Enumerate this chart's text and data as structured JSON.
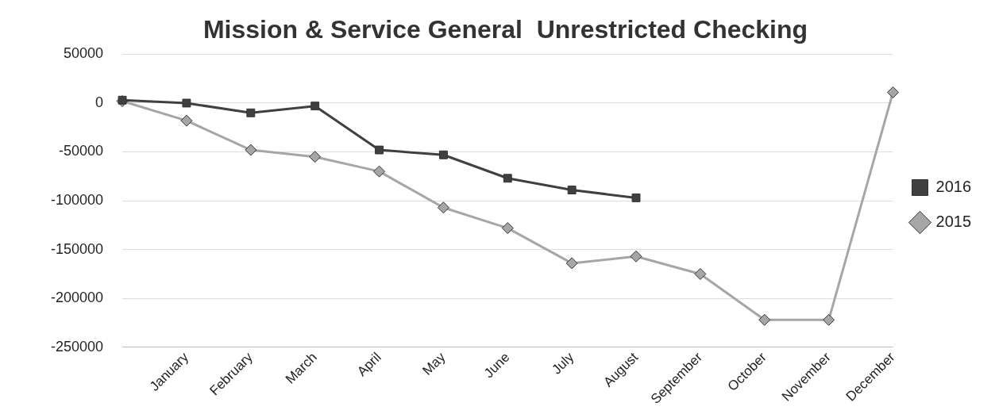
{
  "chart_data": {
    "type": "line",
    "title": "Mission & Service General  Unrestricted Checking",
    "categories": [
      null,
      "January",
      "February",
      "March",
      "April",
      "May",
      "June",
      "July",
      "August",
      "September",
      "October",
      "November",
      "December"
    ],
    "series": [
      {
        "name": "2015",
        "color": "#a6a6a6",
        "marker": "diamond",
        "values": [
          2000,
          -18000,
          -48000,
          -55000,
          -70000,
          -107000,
          -128000,
          -164000,
          -157000,
          -175000,
          -222000,
          -222000,
          11000
        ]
      },
      {
        "name": "2016",
        "color": "#404040",
        "marker": "square",
        "values": [
          3000,
          0,
          -10000,
          -3000,
          -48000,
          -53000,
          -77000,
          -89000,
          -97000,
          null,
          null,
          null,
          null
        ]
      }
    ],
    "ylim": [
      -250000,
      50000
    ],
    "yticks": [
      50000,
      0,
      -50000,
      -100000,
      -150000,
      -200000,
      -250000
    ],
    "grid": "y",
    "legend": "right"
  }
}
